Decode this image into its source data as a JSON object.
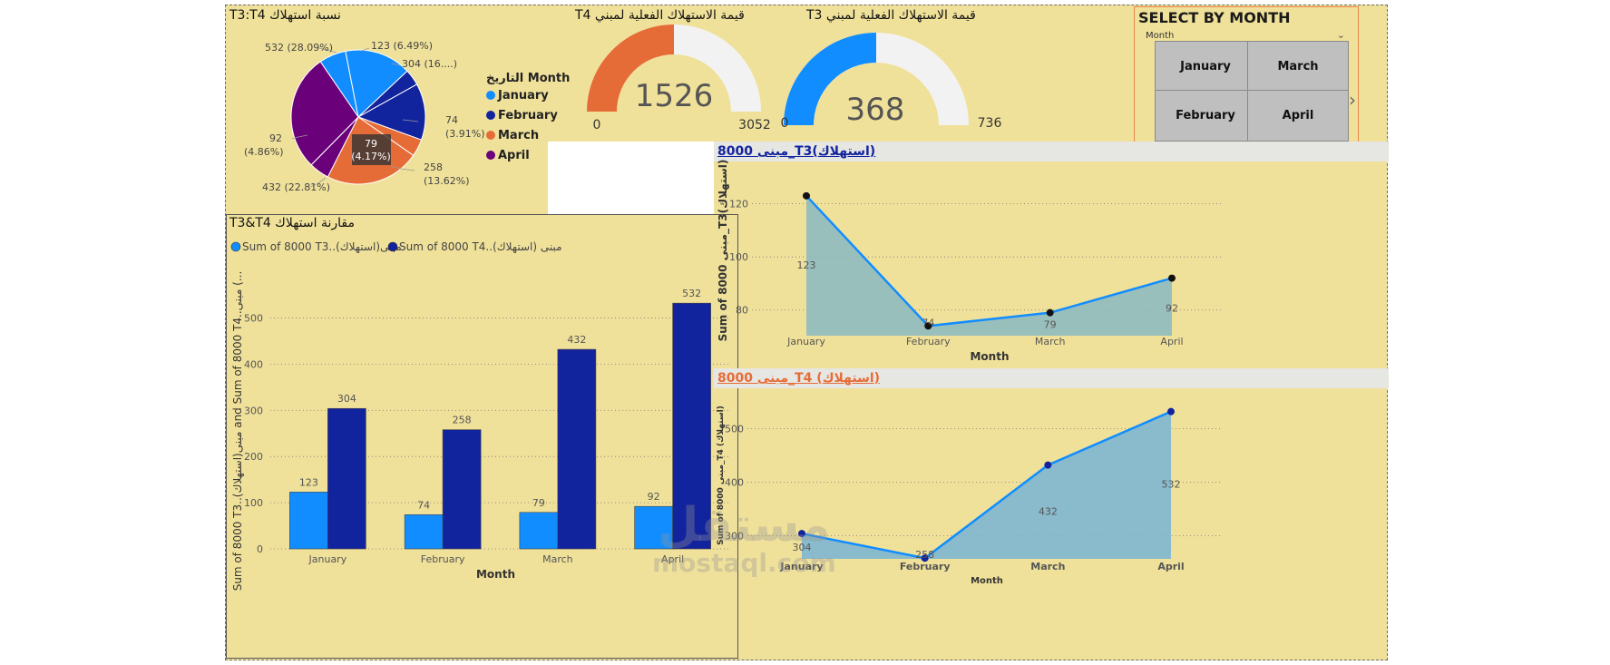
{
  "pie": {
    "title": "T3:T4 نسبة استهلاك",
    "legend_title": "التاريخ Month",
    "legend": [
      {
        "label": "January",
        "color": "#118dff"
      },
      {
        "label": "February",
        "color": "#12239e"
      },
      {
        "label": "March",
        "color": "#e66c37"
      },
      {
        "label": "April",
        "color": "#6b007b"
      }
    ],
    "tooltip_value": "79",
    "tooltip_pct": "(4.17%)",
    "labels": {
      "l532": "532 (28.09%)",
      "l123": "123 (6.49%)",
      "l304": "304 (16....)",
      "l74a": "74",
      "l74b": "(3.91%)",
      "l258a": "258",
      "l258b": "(13.62%)",
      "l432": "432 (22.81%)",
      "l92a": "92",
      "l92b": "(4.86%)"
    }
  },
  "gauge_t4": {
    "title": "T4 قيمة الاستهلاك الفعلية لمبني",
    "value": "1526",
    "min": "0",
    "max": "3052",
    "fraction": 0.5,
    "color": "#e66c37"
  },
  "gauge_t3": {
    "title": "T3 قيمة الاستهلاك الفعلية لمبني",
    "value": "368",
    "min": "0",
    "max": "736",
    "fraction": 0.5,
    "color": "#118dff"
  },
  "slicer": {
    "title": "SELECT BY MONTH",
    "dropdown_label": "Month",
    "options": [
      "January",
      "March",
      "February",
      "April"
    ]
  },
  "chart_data": [
    {
      "type": "bar",
      "title": "T3&T4 مقارنة استهلاك",
      "categories": [
        "January",
        "February",
        "March",
        "April"
      ],
      "series": [
        {
          "name": "Sum of 8000 T3..مبنى(استهلاك)",
          "color": "#118dff",
          "values": [
            123,
            74,
            79,
            92
          ]
        },
        {
          "name": "Sum of 8000 T4..مبنى (استهلاك)",
          "color": "#12239e",
          "values": [
            304,
            258,
            432,
            532
          ]
        }
      ],
      "xlabel": "Month",
      "ylabel": "Sum of 8000 T3..مبنى(استهلاك) and Sum of 8000 T4..مبنى (...",
      "ylim": [
        0,
        550
      ],
      "yticks": [
        0,
        100,
        200,
        300,
        400,
        500
      ],
      "grid": true,
      "legend": "top-left"
    },
    {
      "type": "area",
      "title": "8000 مبنى_T3(استهلاك)",
      "categories": [
        "January",
        "February",
        "March",
        "April"
      ],
      "values": [
        123,
        74,
        79,
        92
      ],
      "xlabel": "Month",
      "ylabel": "Sum of 8000 مبنى_T3(استهلاك)",
      "ylim": [
        70,
        125
      ],
      "yticks": [
        80,
        100,
        120
      ],
      "grid": true
    },
    {
      "type": "area",
      "title": "8000 مبنى_T4 (استهلاك)",
      "categories": [
        "January",
        "February",
        "March",
        "April"
      ],
      "values": [
        304,
        258,
        432,
        532
      ],
      "xlabel": "Month",
      "ylabel": "Sum of 8000 مبنى_T4 (استهلاك)",
      "ylim": [
        255,
        545
      ],
      "yticks": [
        300,
        400,
        500
      ],
      "grid": true
    }
  ],
  "watermark": {
    "ar": "مستقل",
    "en": "mostaql.com"
  }
}
